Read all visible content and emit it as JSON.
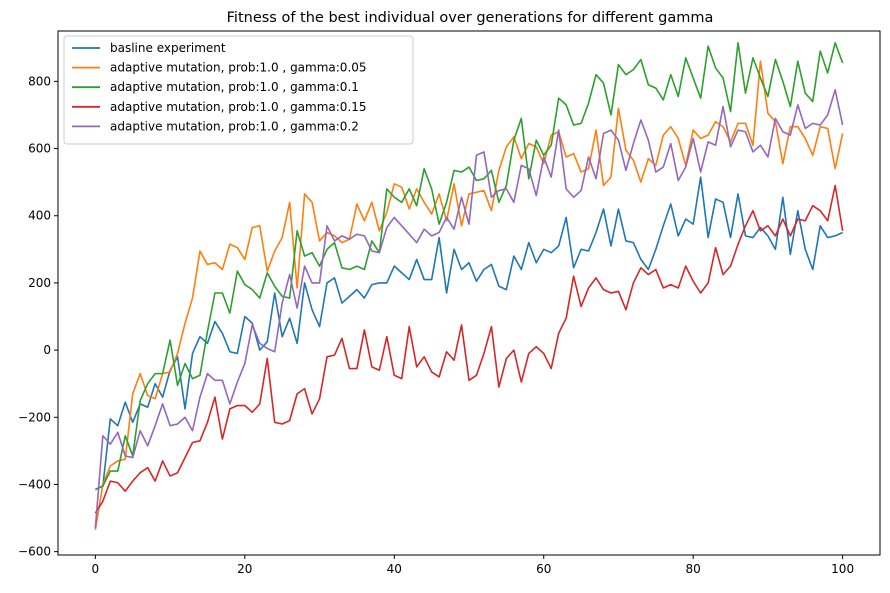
{
  "chart_data": {
    "type": "line",
    "title": "Fitness of the best individual over generations for different gamma",
    "xlabel": "",
    "ylabel": "",
    "xlim": [
      -5,
      105
    ],
    "ylim": [
      -610,
      950
    ],
    "xticks": [
      0,
      20,
      40,
      60,
      80,
      100
    ],
    "yticks": [
      -600,
      -400,
      -200,
      0,
      200,
      400,
      600,
      800
    ],
    "grid": false,
    "legend_position": "top-left",
    "x": [
      0,
      1,
      2,
      3,
      4,
      5,
      6,
      7,
      8,
      9,
      10,
      11,
      12,
      13,
      14,
      15,
      16,
      17,
      18,
      19,
      20,
      21,
      22,
      23,
      24,
      25,
      26,
      27,
      28,
      29,
      30,
      31,
      32,
      33,
      34,
      35,
      36,
      37,
      38,
      39,
      40,
      41,
      42,
      43,
      44,
      45,
      46,
      47,
      48,
      49,
      50,
      51,
      52,
      53,
      54,
      55,
      56,
      57,
      58,
      59,
      60,
      61,
      62,
      63,
      64,
      65,
      66,
      67,
      68,
      69,
      70,
      71,
      72,
      73,
      74,
      75,
      76,
      77,
      78,
      79,
      80,
      81,
      82,
      83,
      84,
      85,
      86,
      87,
      88,
      89,
      90,
      91,
      92,
      93,
      94,
      95,
      96,
      97,
      98,
      99,
      100
    ],
    "series": [
      {
        "name": "basline experiment",
        "color": "#1f77b4",
        "values": [
          -415,
          -405,
          -205,
          -225,
          -155,
          -215,
          -160,
          -170,
          -100,
          -140,
          -60,
          -20,
          -175,
          -10,
          40,
          20,
          85,
          50,
          -5,
          -10,
          100,
          80,
          0,
          25,
          170,
          40,
          95,
          20,
          200,
          120,
          70,
          200,
          215,
          140,
          160,
          180,
          155,
          195,
          200,
          200,
          250,
          230,
          210,
          270,
          210,
          210,
          335,
          170,
          300,
          240,
          260,
          205,
          240,
          255,
          190,
          180,
          280,
          240,
          320,
          260,
          300,
          290,
          310,
          395,
          245,
          300,
          295,
          350,
          420,
          310,
          420,
          325,
          320,
          270,
          240,
          300,
          370,
          435,
          340,
          390,
          375,
          515,
          335,
          450,
          440,
          335,
          465,
          340,
          335,
          365,
          340,
          300,
          455,
          285,
          415,
          300,
          240,
          370,
          335,
          340,
          350
        ]
      },
      {
        "name": "adaptive mutation, prob:1.0 , gamma:0.05",
        "color": "#ff7f0e",
        "values": [
          -535,
          -400,
          -345,
          -330,
          -325,
          -130,
          -70,
          -135,
          -145,
          -70,
          -65,
          -10,
          80,
          155,
          295,
          255,
          260,
          240,
          315,
          305,
          270,
          365,
          370,
          235,
          295,
          335,
          440,
          185,
          465,
          440,
          325,
          350,
          340,
          320,
          330,
          435,
          385,
          440,
          355,
          410,
          495,
          485,
          420,
          480,
          440,
          405,
          465,
          385,
          495,
          370,
          465,
          470,
          475,
          415,
          535,
          605,
          635,
          570,
          615,
          605,
          555,
          640,
          650,
          575,
          585,
          530,
          540,
          655,
          490,
          515,
          720,
          595,
          565,
          500,
          570,
          550,
          640,
          665,
          630,
          550,
          655,
          630,
          640,
          680,
          665,
          620,
          675,
          675,
          610,
          860,
          705,
          680,
          555,
          665,
          665,
          630,
          580,
          665,
          660,
          540,
          645
        ]
      },
      {
        "name": "adaptive mutation, prob:1.0 , gamma:0.1",
        "color": "#2ca02c",
        "values": [
          -415,
          -405,
          -360,
          -360,
          -255,
          -315,
          -150,
          -100,
          -70,
          -70,
          30,
          -105,
          -40,
          -85,
          -75,
          55,
          170,
          170,
          110,
          235,
          195,
          180,
          155,
          230,
          190,
          160,
          155,
          355,
          280,
          290,
          250,
          300,
          320,
          245,
          240,
          250,
          240,
          325,
          290,
          480,
          455,
          440,
          480,
          430,
          540,
          480,
          375,
          440,
          535,
          530,
          545,
          505,
          510,
          535,
          440,
          490,
          625,
          690,
          510,
          625,
          580,
          610,
          750,
          730,
          670,
          675,
          735,
          820,
          795,
          700,
          850,
          820,
          835,
          865,
          790,
          780,
          745,
          820,
          755,
          870,
          810,
          750,
          905,
          840,
          810,
          710,
          915,
          765,
          870,
          810,
          755,
          865,
          800,
          725,
          860,
          765,
          740,
          890,
          825,
          915,
          855
        ]
      },
      {
        "name": "adaptive mutation, prob:1.0 , gamma:0.15",
        "color": "#d62728",
        "values": [
          -485,
          -450,
          -390,
          -395,
          -420,
          -390,
          -365,
          -350,
          -390,
          -330,
          -375,
          -365,
          -320,
          -275,
          -270,
          -215,
          -140,
          -265,
          -175,
          -165,
          -165,
          -185,
          -160,
          -25,
          -215,
          -220,
          -210,
          -130,
          -115,
          -190,
          -145,
          -20,
          -15,
          35,
          -55,
          -55,
          60,
          -50,
          -60,
          40,
          -75,
          -85,
          70,
          -50,
          -20,
          -65,
          -80,
          -5,
          -30,
          75,
          -90,
          -75,
          -10,
          70,
          -110,
          -25,
          0,
          -95,
          -10,
          10,
          -10,
          -55,
          50,
          95,
          220,
          130,
          185,
          215,
          180,
          170,
          175,
          120,
          200,
          245,
          225,
          240,
          185,
          195,
          185,
          250,
          205,
          170,
          200,
          305,
          225,
          250,
          315,
          370,
          415,
          355,
          370,
          340,
          390,
          340,
          390,
          385,
          430,
          415,
          385,
          490,
          355
        ]
      },
      {
        "name": "adaptive mutation, prob:1.0 , gamma:0.2",
        "color": "#9467bd",
        "values": [
          -530,
          -255,
          -280,
          -245,
          -315,
          -320,
          -240,
          -285,
          -225,
          -160,
          -225,
          -220,
          -200,
          -240,
          -140,
          -70,
          -90,
          -90,
          -160,
          -95,
          -40,
          75,
          20,
          5,
          -5,
          140,
          225,
          125,
          250,
          200,
          200,
          370,
          325,
          340,
          330,
          345,
          340,
          295,
          290,
          365,
          395,
          370,
          345,
          320,
          360,
          340,
          350,
          395,
          360,
          455,
          375,
          580,
          590,
          455,
          475,
          480,
          440,
          550,
          540,
          460,
          575,
          515,
          655,
          480,
          455,
          475,
          575,
          510,
          645,
          655,
          625,
          535,
          615,
          685,
          625,
          530,
          545,
          615,
          505,
          545,
          630,
          530,
          620,
          610,
          725,
          605,
          655,
          650,
          590,
          610,
          575,
          690,
          650,
          640,
          730,
          660,
          675,
          670,
          700,
          775,
          670
        ]
      }
    ]
  }
}
